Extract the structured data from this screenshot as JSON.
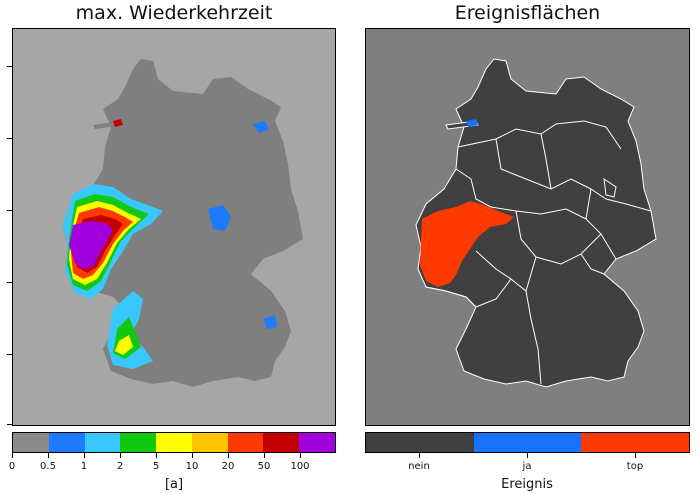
{
  "left_panel": {
    "title": "max. Wiederkehrzeit",
    "colorbar": {
      "colors": [
        "#8a8a8a",
        "#1e7bff",
        "#38c8ff",
        "#12c912",
        "#ffff00",
        "#ffc400",
        "#ff3a00",
        "#c40000",
        "#a000dc"
      ],
      "tick_labels": [
        "0",
        "0.5",
        "1",
        "2",
        "5",
        "10",
        "20",
        "50",
        "100"
      ],
      "axis_label": "[a]"
    }
  },
  "right_panel": {
    "title": "Ereignisflächen",
    "colorbar": {
      "colors": [
        "#404040",
        "#1573ff",
        "#ff3a00"
      ],
      "tick_labels": [
        "nein",
        "ja",
        "top"
      ],
      "axis_label": "Ereignis"
    }
  },
  "style_colors": {
    "left_background": "#a6a6a6",
    "left_country": "#7f7f7f",
    "right_background": "#7f7f7f",
    "right_country": "#404040",
    "event_top": "#ff3a00",
    "event_ja": "#1573ff",
    "state_borders": "#ffffff"
  }
}
